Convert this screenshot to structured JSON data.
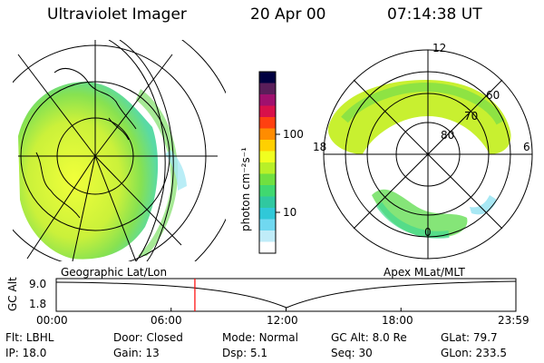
{
  "header": {
    "title": "Ultraviolet Imager",
    "date": "20 Apr 00",
    "time": "07:14:38 UT"
  },
  "left_map": {
    "caption": "Geographic Lat/Lon"
  },
  "right_map": {
    "caption": "Apex MLat/MLT",
    "mlt_labels": [
      "12",
      "18",
      "6",
      "0"
    ],
    "mlat_labels": [
      "60",
      "70",
      "80"
    ]
  },
  "colorbar": {
    "unit_label": "photon cm⁻²s⁻¹",
    "tick_labels": [
      "100",
      "10"
    ],
    "colors": [
      "#000040",
      "#5a1e5a",
      "#a0106e",
      "#d8104a",
      "#ff4010",
      "#ff8c00",
      "#ffd000",
      "#f0ff20",
      "#b8f028",
      "#70e040",
      "#40d870",
      "#30c8a0",
      "#30c8d8",
      "#70d8f0",
      "#c0ecf8",
      "#ffffff"
    ]
  },
  "timeline": {
    "y_label": "GC Alt",
    "y_ticks": [
      "9.0",
      "1.8"
    ],
    "x_ticks": [
      "00:00",
      "06:00",
      "12:00",
      "18:00",
      "23:59"
    ],
    "marker_time_hours": 7.24,
    "marker_color": "#ff0000"
  },
  "footer": {
    "row1": [
      {
        "label": "Flt:",
        "value": "LBHL"
      },
      {
        "label": "Door:",
        "value": "Closed"
      },
      {
        "label": "Mode:",
        "value": "Normal"
      },
      {
        "label": "GC Alt:",
        "value": "8.0 Re"
      },
      {
        "label": "GLat:",
        "value": "79.7"
      }
    ],
    "row2": [
      {
        "label": "IP:",
        "value": "18.0"
      },
      {
        "label": "Gain:",
        "value": "13"
      },
      {
        "label": "Dsp:",
        "value": "5.1"
      },
      {
        "label": "Seq:",
        "value": "30"
      },
      {
        "label": "GLon:",
        "value": "233.5"
      }
    ]
  }
}
